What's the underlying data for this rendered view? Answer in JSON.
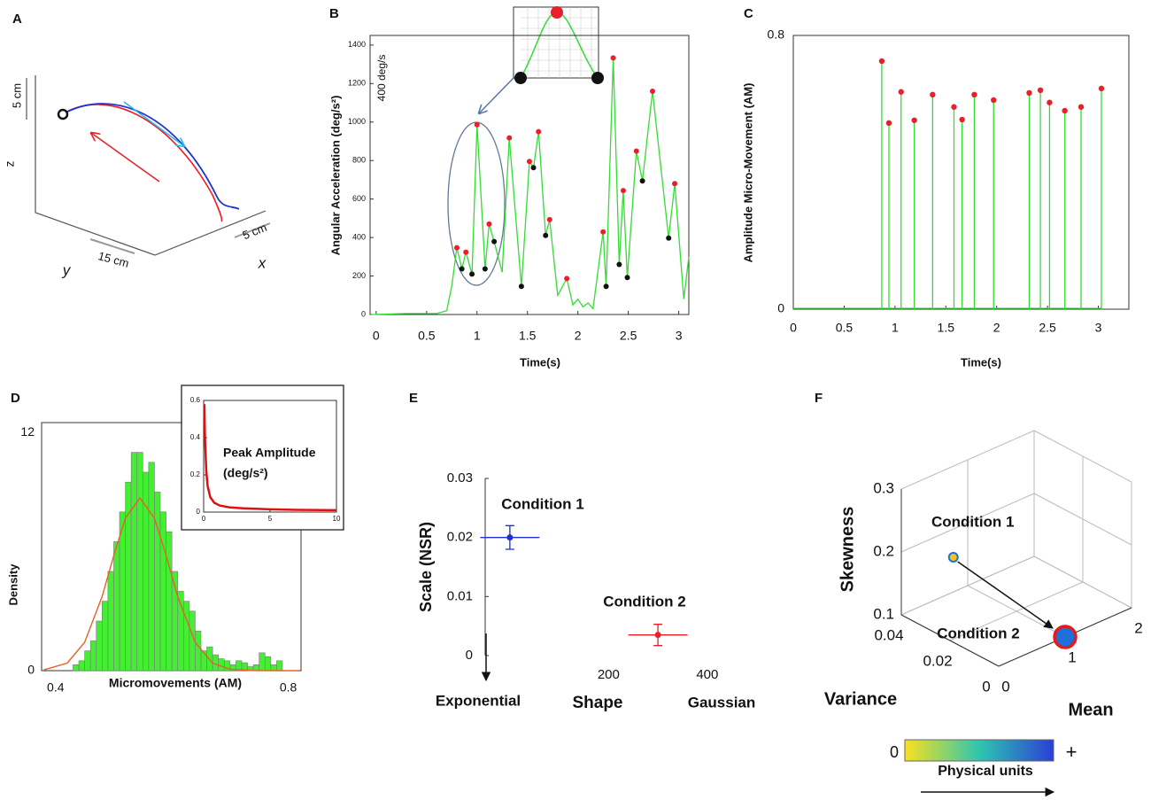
{
  "chart_data": [
    {
      "panel": "A",
      "type": "diagram",
      "axis_labels": {
        "z": "z",
        "y": "y",
        "x": "x"
      },
      "scales": [
        "5 cm",
        "15 cm",
        "5 cm"
      ]
    },
    {
      "panel": "B",
      "type": "line",
      "ylabel": "Angular Acceleration (deg/s²)",
      "xlabel": "Time(s)",
      "annotation": "400 deg/s",
      "xlim": [
        -0.06,
        3.1
      ],
      "ylim": [
        0,
        1450
      ],
      "xticks": [
        0,
        0.5,
        1,
        1.5,
        2,
        2.5,
        3
      ],
      "yticks": [
        0,
        200,
        400,
        600,
        800,
        1000,
        1200,
        1400
      ],
      "series": [
        {
          "color": "#33dd33",
          "x": [
            -0.05,
            0.3,
            0.6,
            0.7,
            0.75,
            0.8,
            0.85,
            0.89,
            0.95,
            1.0,
            1.08,
            1.12,
            1.17,
            1.25,
            1.32,
            1.44,
            1.52,
            1.56,
            1.61,
            1.68,
            1.72,
            1.8,
            1.89,
            1.95,
            2.0,
            2.05,
            2.1,
            2.15,
            2.25,
            2.28,
            2.35,
            2.41,
            2.45,
            2.49,
            2.58,
            2.64,
            2.74,
            2.9,
            2.96,
            3.05,
            3.1
          ],
          "values": [
            0,
            5,
            5,
            20,
            150,
            347,
            237,
            324,
            210,
            986,
            237,
            470,
            379,
            220,
            918,
            146,
            795,
            763,
            950,
            411,
            493,
            100,
            187,
            50,
            80,
            40,
            60,
            30,
            429,
            146,
            1333,
            260,
            644,
            192,
            849,
            694,
            1160,
            397,
            680,
            80,
            300
          ]
        },
        {
          "color": "#e8202a",
          "marker": "dot",
          "x": [
            0.8,
            0.89,
            1.0,
            1.12,
            1.32,
            1.52,
            1.61,
            1.72,
            1.89,
            2.25,
            2.35,
            2.45,
            2.58,
            2.74,
            2.96
          ],
          "values": [
            347,
            324,
            986,
            470,
            918,
            795,
            950,
            493,
            187,
            429,
            1333,
            644,
            849,
            1160,
            680
          ]
        },
        {
          "color": "#111111",
          "marker": "dot",
          "x": [
            0.85,
            0.95,
            1.08,
            1.17,
            1.44,
            1.56,
            1.68,
            2.28,
            2.41,
            2.49,
            2.64,
            2.9
          ],
          "values": [
            237,
            210,
            237,
            379,
            146,
            763,
            411,
            146,
            260,
            192,
            694,
            397
          ]
        }
      ]
    },
    {
      "panel": "C",
      "type": "stem",
      "ylabel": "Amplitude Micro-Movement (AM)",
      "xlabel": "Time(s)",
      "xlim": [
        0,
        3.3
      ],
      "ylim": [
        0,
        0.8
      ],
      "xticks": [
        0,
        0.5,
        1,
        1.5,
        2,
        2.5,
        3
      ],
      "yticks": [
        0,
        0.8
      ],
      "color": "#33dd33",
      "marker_color": "#e8202a",
      "x": [
        0.87,
        0.94,
        1.06,
        1.19,
        1.37,
        1.58,
        1.66,
        1.78,
        1.97,
        2.32,
        2.43,
        2.52,
        2.67,
        2.83,
        3.03
      ],
      "values": [
        0.725,
        0.544,
        0.635,
        0.552,
        0.627,
        0.591,
        0.554,
        0.627,
        0.611,
        0.632,
        0.64,
        0.604,
        0.58,
        0.591,
        0.645
      ]
    },
    {
      "panel": "D",
      "type": "histogram",
      "ylabel": "Density",
      "xlabel": "Micromovements (AM)",
      "xlim": [
        0.376,
        0.822
      ],
      "ylim": [
        0,
        12.5
      ],
      "xticks": [
        0.4,
        0.8
      ],
      "yticks": [
        0,
        12
      ],
      "color": "#44ee33",
      "bins": [
        0.43,
        0.44,
        0.45,
        0.46,
        0.47,
        0.48,
        0.49,
        0.5,
        0.51,
        0.52,
        0.53,
        0.54,
        0.55,
        0.56,
        0.57,
        0.58,
        0.59,
        0.6,
        0.61,
        0.62,
        0.63,
        0.64,
        0.65,
        0.66,
        0.67,
        0.68,
        0.69,
        0.7,
        0.71,
        0.72,
        0.73,
        0.74,
        0.75,
        0.76,
        0.77,
        0.78,
        0.79
      ],
      "values": [
        0.3,
        0.5,
        1,
        1.5,
        2.5,
        3.5,
        5,
        6.5,
        8,
        9.5,
        11,
        11,
        10,
        10.5,
        9,
        8,
        7,
        5,
        4,
        3.5,
        3,
        2,
        1,
        1.2,
        0.8,
        0.6,
        0.5,
        0.3,
        0.5,
        0.4,
        0.2,
        0.3,
        0.9,
        0.7,
        0.3,
        0.5
      ],
      "fit": {
        "color": "#e8602a",
        "x": [
          0.38,
          0.42,
          0.45,
          0.48,
          0.5,
          0.52,
          0.545,
          0.57,
          0.59,
          0.61,
          0.64,
          0.67,
          0.7,
          0.74,
          0.78,
          0.82
        ],
        "values": [
          0.04,
          0.38,
          1.43,
          3.73,
          5.8,
          7.68,
          8.7,
          7.68,
          5.8,
          3.73,
          1.43,
          0.38,
          0.07,
          0.004,
          0,
          0
        ]
      }
    },
    {
      "panel_inset": "D",
      "type": "line",
      "annotation": [
        "Peak Amplitude",
        "(deg/s²)"
      ],
      "xlim": [
        0,
        10
      ],
      "ylim": [
        0,
        0.6
      ],
      "xticks": [
        0,
        5,
        10
      ],
      "yticks": [
        0,
        0.2,
        0.4,
        0.6
      ],
      "series": [
        {
          "color": "#dd1111",
          "x": [
            0.05,
            0.1,
            0.2,
            0.3,
            0.5,
            0.8,
            1.2,
            2,
            3,
            5,
            7,
            10
          ],
          "values": [
            0.58,
            0.4,
            0.22,
            0.14,
            0.08,
            0.05,
            0.035,
            0.025,
            0.02,
            0.015,
            0.012,
            0.01
          ]
        }
      ]
    },
    {
      "panel": "E",
      "type": "errorbar",
      "ylabel": "Scale  (NSR)",
      "xlabel": "Shape",
      "annotations": [
        "Exponential",
        "Gaussian"
      ],
      "xlim": [
        -50,
        420
      ],
      "ylim": [
        0,
        0.03
      ],
      "xticks": [
        200,
        400
      ],
      "yticks": [
        0,
        0.01,
        0.02,
        0.03
      ],
      "series": [
        {
          "name": "Condition 1",
          "color": "#1f2fd1",
          "x": [
            0
          ],
          "values": [
            0.02
          ],
          "xerr": [
            60
          ],
          "yerr": [
            0.002
          ]
        },
        {
          "name": "Condition 2",
          "color": "#e8202a",
          "x": [
            300
          ],
          "values": [
            0.0035
          ],
          "xerr": [
            60
          ],
          "yerr": [
            0.0018
          ]
        }
      ]
    },
    {
      "panel": "F",
      "type": "scatter3d",
      "xlabel": "Mean",
      "ylabel": "Variance",
      "zlabel": "Skewness",
      "xlim": [
        0,
        2
      ],
      "ylim": [
        0,
        0.04
      ],
      "zlim": [
        0.1,
        0.3
      ],
      "xticks": [
        0,
        1,
        2
      ],
      "yticks": [
        0,
        0.02,
        0.04
      ],
      "zticks": [
        0.1,
        0.2,
        0.3
      ],
      "series": [
        {
          "name": "Condition 1",
          "color": "#f5c518",
          "edgecolor": "#1e6fd9",
          "x": [
            0.05
          ],
          "y": [
            0.02
          ],
          "z": [
            0.23
          ]
        },
        {
          "name": "Condition 2",
          "color": "#1e6fd9",
          "edgecolor": "#e41a1c",
          "x": [
            1
          ],
          "y": [
            0
          ],
          "z": [
            0.1
          ]
        }
      ],
      "colorbar": {
        "labels": [
          "0",
          "+"
        ],
        "label": "Physical units",
        "colors": [
          "#f9e11e",
          "#2ec6b0",
          "#2a3fd4"
        ]
      }
    }
  ]
}
